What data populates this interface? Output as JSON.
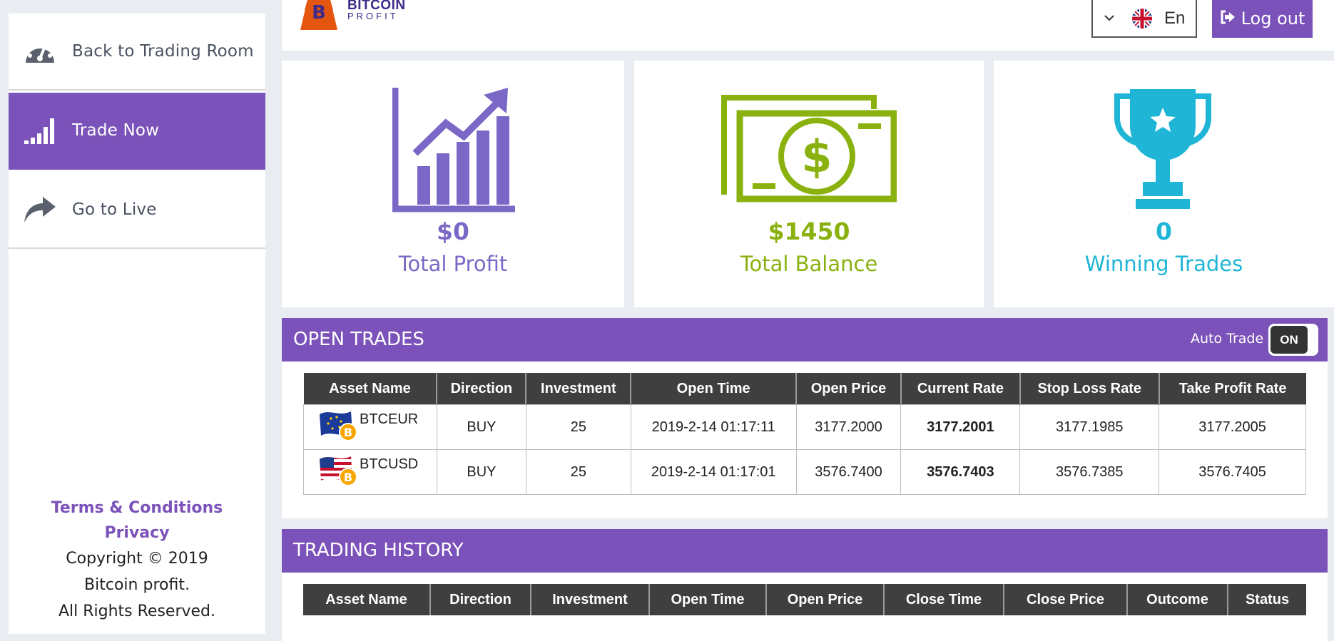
{
  "sidebar": {
    "items": [
      {
        "label": "Back to Trading Room",
        "icon": "speedometer-icon"
      },
      {
        "label": "Trade Now",
        "icon": "signal-bars-icon",
        "active": true
      },
      {
        "label": "Go to Live",
        "icon": "share-arrow-icon"
      }
    ],
    "footer": {
      "terms": "Terms & Conditions",
      "privacy": "Privacy",
      "copyright": "Copyright © 2019",
      "company": "Bitcoin profit.",
      "rights": "All Rights Reserved."
    }
  },
  "header": {
    "logo_line1": "BITCOIN",
    "logo_line2": "PROFIT",
    "language": "En",
    "logout_label": "Log out"
  },
  "stats": [
    {
      "value": "$0",
      "label": "Total Profit",
      "color": "#7b68c6",
      "icon": "growth-chart-icon"
    },
    {
      "value": "$1450",
      "label": "Total Balance",
      "color": "#8ab20f",
      "icon": "money-bill-icon"
    },
    {
      "value": "0",
      "label": "Winning Trades",
      "color": "#1fb5d6",
      "icon": "trophy-icon"
    }
  ],
  "open_trades": {
    "title": "OPEN TRADES",
    "auto_trade_label": "Auto Trade",
    "toggle_state": "ON",
    "columns": [
      "Asset Name",
      "Direction",
      "Investment",
      "Open Time",
      "Open Price",
      "Current Rate",
      "Stop Loss Rate",
      "Take Profit Rate"
    ],
    "rows": [
      {
        "asset": "BTCEUR",
        "flag": "eu",
        "direction": "BUY",
        "investment": "25",
        "open_time": "2019-2-14 01:17:11",
        "open_price": "3177.2000",
        "current_rate": "3177.2001",
        "stop_loss": "3177.1985",
        "take_profit": "3177.2005"
      },
      {
        "asset": "BTCUSD",
        "flag": "us",
        "direction": "BUY",
        "investment": "25",
        "open_time": "2019-2-14 01:17:01",
        "open_price": "3576.7400",
        "current_rate": "3576.7403",
        "stop_loss": "3576.7385",
        "take_profit": "3576.7405"
      }
    ]
  },
  "trading_history": {
    "title": "TRADING HISTORY",
    "columns": [
      "Asset Name",
      "Direction",
      "Investment",
      "Open Time",
      "Open Price",
      "Close Time",
      "Close Price",
      "Outcome",
      "Status"
    ]
  },
  "colors": {
    "accent": "#7b52b9",
    "table_header": "#3f3f3f"
  }
}
